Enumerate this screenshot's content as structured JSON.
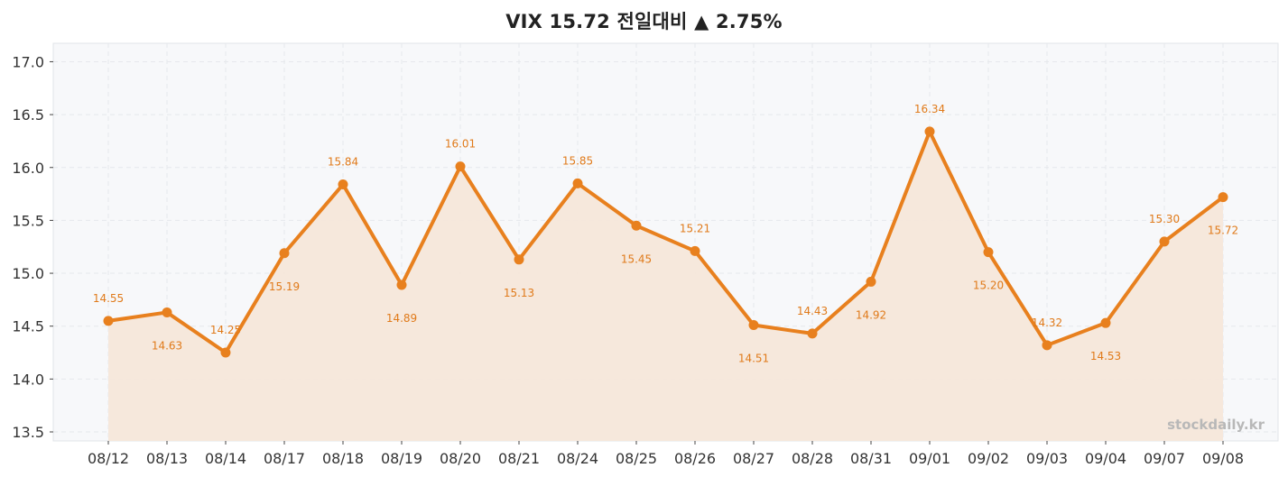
{
  "chart_data": {
    "type": "line",
    "title": "VIX 15.72 전일대비 ▲ 2.75%",
    "categories": [
      "08/12",
      "08/13",
      "08/14",
      "08/17",
      "08/18",
      "08/19",
      "08/20",
      "08/21",
      "08/24",
      "08/25",
      "08/26",
      "08/27",
      "08/28",
      "08/31",
      "09/01",
      "09/02",
      "09/03",
      "09/04",
      "09/07",
      "09/08"
    ],
    "series": [
      {
        "values": [
          14.55,
          14.63,
          14.25,
          15.19,
          15.84,
          14.89,
          16.01,
          15.13,
          15.85,
          15.45,
          15.21,
          14.51,
          14.43,
          14.92,
          16.34,
          15.2,
          14.32,
          14.53,
          15.3,
          15.72
        ],
        "data_labels": [
          "14.55",
          "14.63",
          "14.25",
          "15.19",
          "15.84",
          "14.89",
          "16.01",
          "15.13",
          "15.85",
          "15.45",
          "15.21",
          "14.51",
          "14.43",
          "14.92",
          "16.34",
          "15.20",
          "14.32",
          "14.53",
          "15.30",
          "15.72"
        ],
        "label_position": [
          "above",
          "below",
          "above",
          "below",
          "above",
          "below",
          "above",
          "below",
          "above",
          "below",
          "above",
          "below",
          "above",
          "below",
          "above",
          "below",
          "above",
          "below",
          "above",
          "below"
        ],
        "color": "#e8801e",
        "fill": "#f5e7da"
      }
    ],
    "y_ticks": [
      "13.5",
      "14.0",
      "14.5",
      "15.0",
      "15.5",
      "16.0",
      "16.5",
      "17.0"
    ],
    "y_tick_values": [
      13.5,
      14.0,
      14.5,
      15.0,
      15.5,
      16.0,
      16.5,
      17.0
    ],
    "ylim": [
      13.45,
      17.17
    ],
    "grid": true,
    "plot_background": "#f7f8fa",
    "watermark": "stockdaily.kr",
    "xlabel": "",
    "ylabel": ""
  }
}
